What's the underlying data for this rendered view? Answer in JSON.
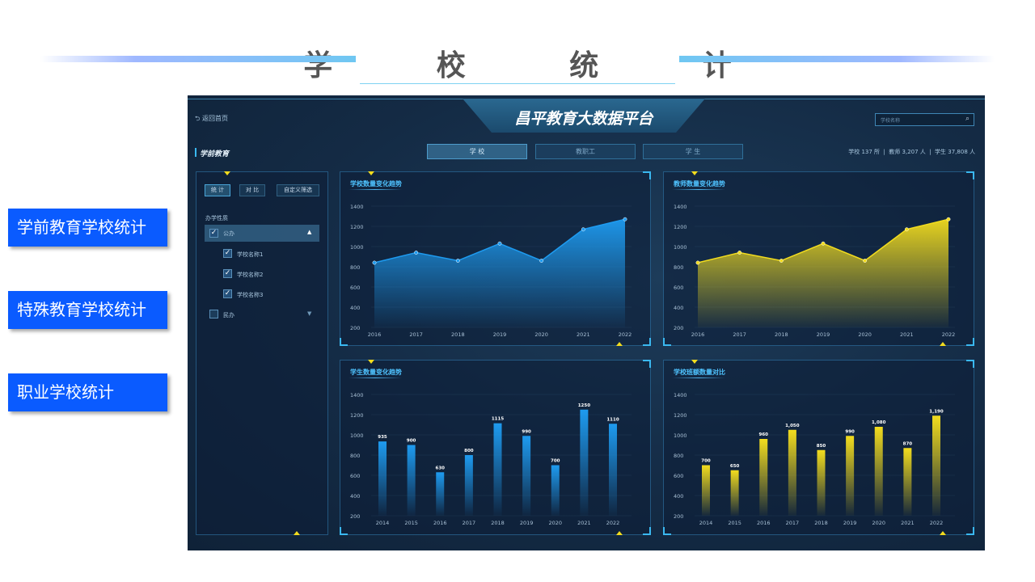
{
  "slide": {
    "title": "学 校 统 计",
    "side_buttons": [
      "学前教育学校统计",
      "特殊教育学校统计",
      "职业学校统计"
    ]
  },
  "dashboard": {
    "title": "昌平教育大数据平台",
    "back_label": "返回首页",
    "search_placeholder": "学校名称",
    "section": "学前教育",
    "tabs": [
      {
        "label": "学 校",
        "active": true
      },
      {
        "label": "教职工",
        "active": false
      },
      {
        "label": "学 生",
        "active": false
      }
    ],
    "stats": "学校 137 所  |  教师 3,207 人  |  学生 37,808 人",
    "filter": {
      "buttons": [
        "统 计",
        "对 比",
        "自定义筛选"
      ],
      "group_label": "办学性质",
      "items": [
        {
          "label": "公办",
          "checked": true,
          "expanded": true
        },
        {
          "label": "学校名称1",
          "checked": true
        },
        {
          "label": "学校名称2",
          "checked": true
        },
        {
          "label": "学校名称3",
          "checked": true
        },
        {
          "label": "民办",
          "checked": false,
          "expanded": false
        }
      ]
    },
    "colors": {
      "blue": "#1e9bf0",
      "yellow": "#f2dc1e",
      "accent": "#3ab8f0"
    }
  },
  "chart_data": [
    {
      "type": "area",
      "title": "学校数量变化趋势",
      "categories": [
        "2016",
        "2017",
        "2018",
        "2019",
        "2020",
        "2021",
        "2022"
      ],
      "values": [
        840,
        940,
        860,
        1030,
        860,
        1170,
        1270
      ],
      "ylim": [
        200,
        1400
      ],
      "yticks": [
        1400,
        1200,
        1000,
        800,
        600,
        400,
        200
      ],
      "color": "#1e9bf0"
    },
    {
      "type": "area",
      "title": "教师数量变化趋势",
      "categories": [
        "2016",
        "2017",
        "2018",
        "2019",
        "2020",
        "2021",
        "2022"
      ],
      "values": [
        840,
        940,
        860,
        1030,
        860,
        1170,
        1270
      ],
      "ylim": [
        200,
        1400
      ],
      "yticks": [
        1400,
        1200,
        1000,
        800,
        600,
        400,
        200
      ],
      "color": "#f2dc1e"
    },
    {
      "type": "bar",
      "title": "学生数量变化趋势",
      "categories": [
        "2014",
        "2015",
        "2016",
        "2017",
        "2018",
        "2019",
        "2020",
        "2021",
        "2022"
      ],
      "values": [
        935,
        900,
        630,
        800,
        1115,
        990,
        700,
        1250,
        1110
      ],
      "labels": [
        "935",
        "900",
        "630",
        "800",
        "1115",
        "990",
        "700",
        "1250",
        "1110"
      ],
      "ylim": [
        200,
        1400
      ],
      "yticks": [
        1400,
        1200,
        1000,
        800,
        600,
        400,
        200
      ],
      "color": "#1e9bf0"
    },
    {
      "type": "bar",
      "title": "学校班额数量对比",
      "categories": [
        "2014",
        "2015",
        "2016",
        "2017",
        "2018",
        "2019",
        "2020",
        "2021",
        "2022"
      ],
      "values": [
        700,
        650,
        960,
        1050,
        850,
        990,
        1080,
        870,
        1190
      ],
      "labels": [
        "700",
        "650",
        "960",
        "1,050",
        "850",
        "990",
        "1,080",
        "870",
        "1,190"
      ],
      "ylim": [
        200,
        1400
      ],
      "yticks": [
        1400,
        1200,
        1000,
        800,
        600,
        400,
        200
      ],
      "color": "#f2dc1e"
    }
  ]
}
